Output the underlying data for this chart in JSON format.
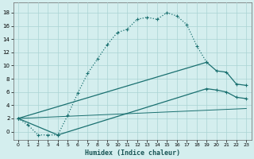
{
  "xlabel": "Humidex (Indice chaleur)",
  "xlim": [
    -0.5,
    23.5
  ],
  "ylim": [
    -1.2,
    19.5
  ],
  "xticks": [
    0,
    1,
    2,
    3,
    4,
    5,
    6,
    7,
    8,
    9,
    10,
    11,
    12,
    13,
    14,
    15,
    16,
    17,
    18,
    19,
    20,
    21,
    22,
    23
  ],
  "yticks": [
    0,
    2,
    4,
    6,
    8,
    10,
    12,
    14,
    16,
    18
  ],
  "ytick_labels": [
    "0",
    "2",
    "4",
    "6",
    "8",
    "10",
    "12",
    "14",
    "16",
    "18"
  ],
  "bg_color": "#d4eeee",
  "grid_color": "#aad4d4",
  "line_color": "#1a7070",
  "curve1_x": [
    0,
    1,
    2,
    3,
    4,
    5,
    6,
    7,
    8,
    9,
    10,
    11,
    12,
    13,
    14,
    15,
    16,
    17,
    18,
    19
  ],
  "curve1_y": [
    2.0,
    1.0,
    -0.5,
    -0.5,
    -0.5,
    2.5,
    5.8,
    8.8,
    11.0,
    13.2,
    15.0,
    15.5,
    17.0,
    17.3,
    17.0,
    18.0,
    17.5,
    16.2,
    13.0,
    10.5
  ],
  "curve2_x": [
    0,
    19,
    20,
    21,
    22,
    23
  ],
  "curve2_y": [
    2.0,
    10.5,
    9.2,
    9.0,
    7.2,
    7.0
  ],
  "curve3_x": [
    0,
    4,
    19,
    20,
    21,
    22,
    23
  ],
  "curve3_y": [
    2.0,
    -0.5,
    6.5,
    6.3,
    6.0,
    5.2,
    5.0
  ],
  "curve4_x": [
    0,
    23
  ],
  "curve4_y": [
    2.0,
    3.5
  ]
}
